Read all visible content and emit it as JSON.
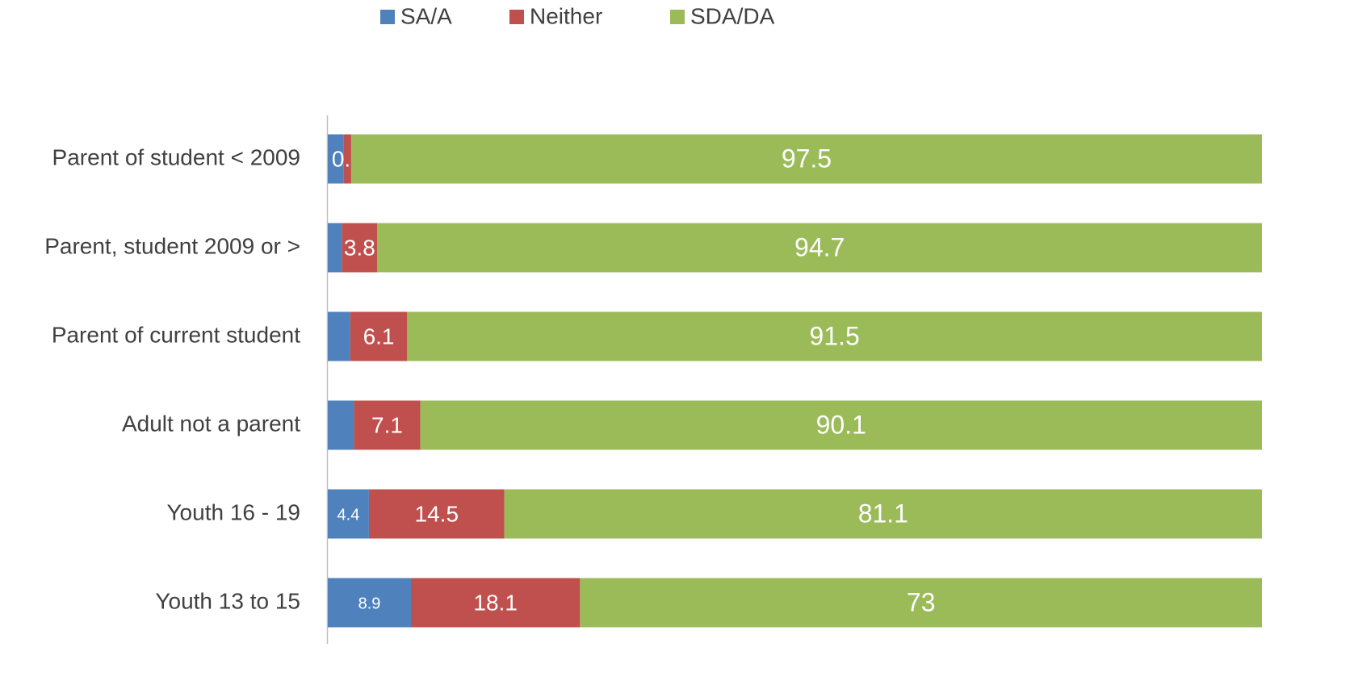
{
  "chart_data": {
    "type": "stacked-barh",
    "categories": [
      "Parent of student < 2009",
      "Parent, student 2009 or >",
      "Parent of current student",
      "Adult not a parent",
      "Youth 16 - 19",
      "Youth 13 to 15"
    ],
    "series": [
      {
        "name": "SA/A",
        "color": "#4f81bd",
        "values": [
          1.7,
          1.5,
          2.4,
          2.8,
          4.4,
          8.9
        ],
        "value_labels": [
          null,
          null,
          null,
          null,
          "4.4",
          "8.9"
        ]
      },
      {
        "name": "Neither",
        "color": "#c0504d",
        "values": [
          0.8,
          3.8,
          6.1,
          7.1,
          14.5,
          18.1
        ]
      },
      {
        "name": "SDA/DA",
        "color": "#9bbb59",
        "values": [
          97.5,
          94.7,
          91.5,
          90.1,
          81.1,
          73
        ]
      }
    ],
    "xlim": [
      0,
      100
    ],
    "legend": "top"
  }
}
